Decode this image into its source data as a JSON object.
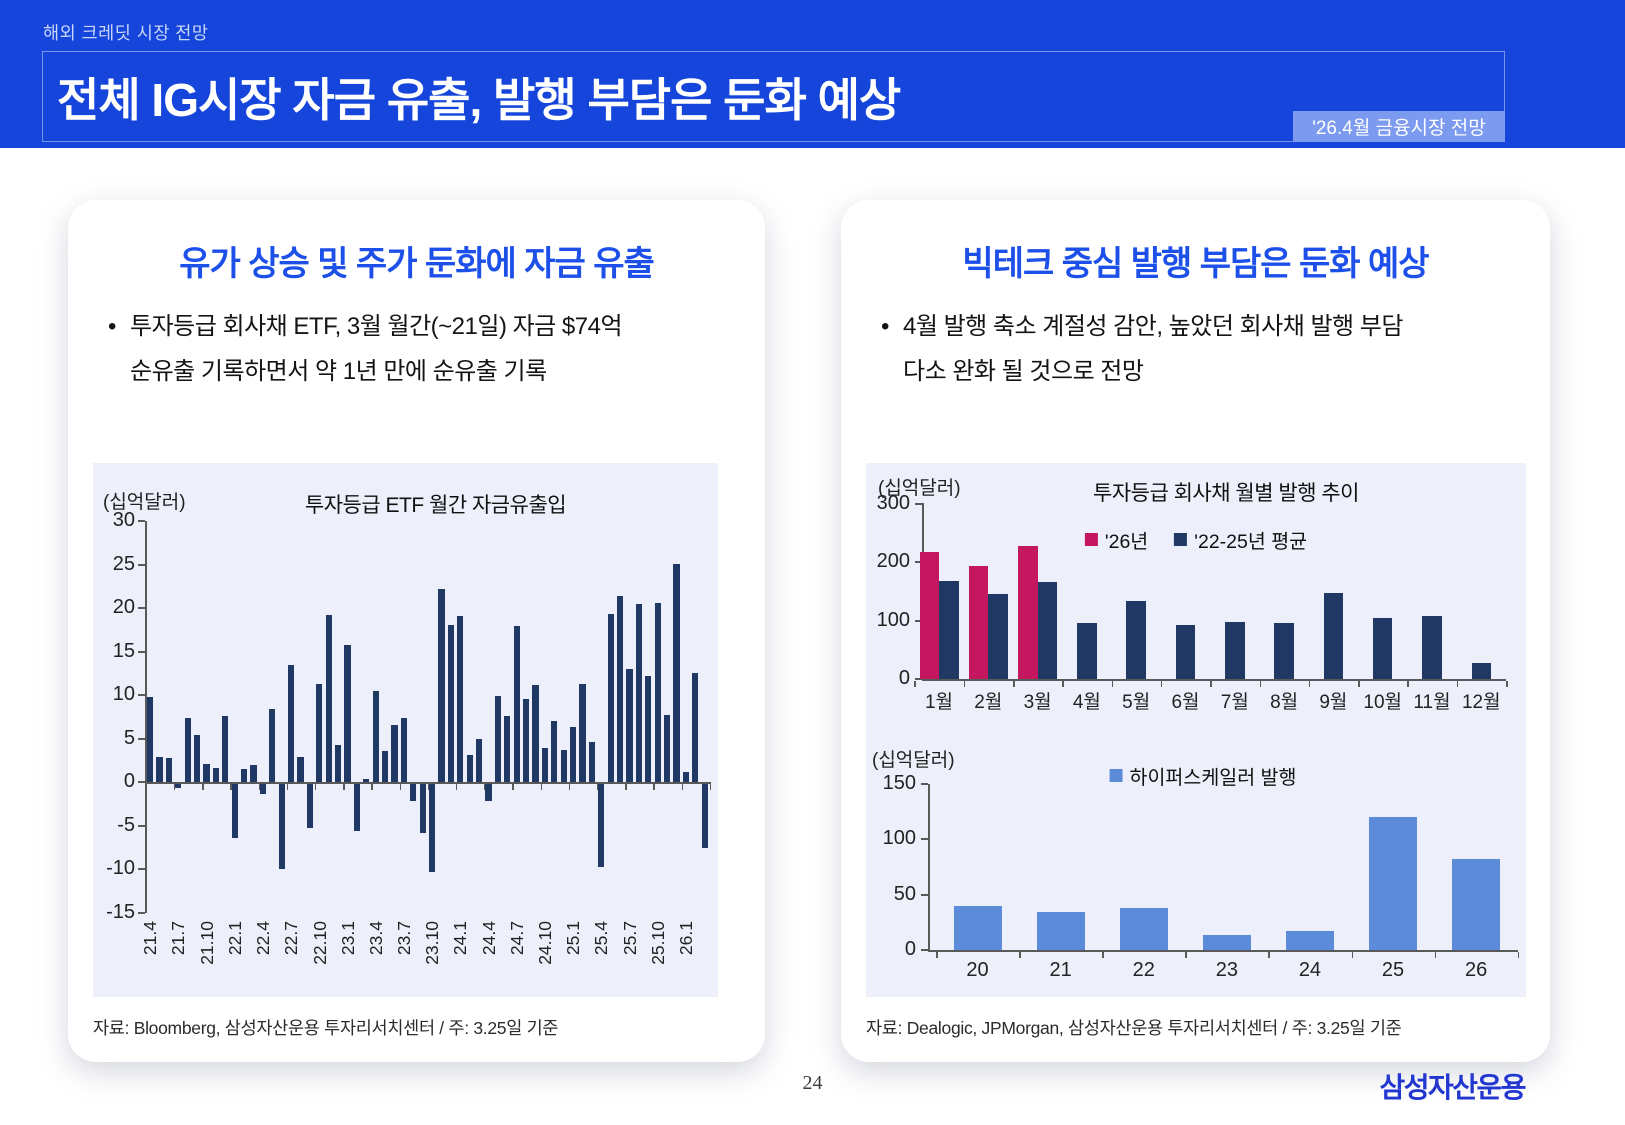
{
  "header": {
    "eyebrow": "해외 크레딧 시장 전망",
    "title": "전체 IG시장 자금 유출, 발행 부담은 둔화 예상",
    "badge": "'26.4월 금융시장 전망"
  },
  "left_card": {
    "title": "유가 상승 및 주가 둔화에 자금 유출",
    "bullet": {
      "line1": "투자등급 회사채 ETF, 3월 월간(~21일) 자금 $74억",
      "line2": "순유출 기록하면서 약 1년 만에 순유출 기록"
    },
    "source": "자료: Bloomberg, 삼성자산운용 투자리서치센터 / 주: 3.25일 기준"
  },
  "right_card": {
    "title": "빅테크 중심 발행 부담은 둔화 예상",
    "bullet": {
      "line1": "4월 발행 축소 계절성 감안, 높았던 회사채 발행 부담",
      "line2": "다소 완화 될 것으로 전망"
    },
    "source": "자료: Dealogic, JPMorgan, 삼성자산운용 투자리서치센터 / 주: 3.25일 기준"
  },
  "footer": {
    "page_number": "24",
    "logo": "삼성자산운용"
  },
  "colors": {
    "banner_blue": "#1545DA",
    "badge_blue": "#7C9AEF",
    "title_blue": "#1C50E9",
    "navy_bar": "#1F3864",
    "magenta_bar": "#C4175F",
    "light_blue_bar": "#5B8BD9",
    "chart_bg": "#EDF0FA",
    "axis": "#595959"
  },
  "chart_data": [
    {
      "type": "bar",
      "title": "투자등급 ETF 월간 자금유출입",
      "unit_label": "(십억달러)",
      "ylim": [
        -15,
        30
      ],
      "yticks": [
        30,
        25,
        20,
        15,
        10,
        5,
        0,
        -5,
        -10,
        -15
      ],
      "bar_color": "#1F3864",
      "grid": false,
      "x_tick_every": 3,
      "x_tick_labels": [
        "21.4",
        "21.7",
        "21.10",
        "22.1",
        "22.4",
        "22.7",
        "22.10",
        "23.1",
        "23.4",
        "23.7",
        "23.10",
        "24.1",
        "24.4",
        "24.7",
        "24.10",
        "25.1",
        "25.4",
        "25.7",
        "25.10",
        "26.1"
      ],
      "months": [
        "21.4",
        "21.5",
        "21.6",
        "21.7",
        "21.8",
        "21.9",
        "21.10",
        "21.11",
        "21.12",
        "22.1",
        "22.2",
        "22.3",
        "22.4",
        "22.5",
        "22.6",
        "22.7",
        "22.8",
        "22.9",
        "22.10",
        "22.11",
        "22.12",
        "23.1",
        "23.2",
        "23.3",
        "23.4",
        "23.5",
        "23.6",
        "23.7",
        "23.8",
        "23.9",
        "23.10",
        "23.11",
        "23.12",
        "24.1",
        "24.2",
        "24.3",
        "24.4",
        "24.5",
        "24.6",
        "24.7",
        "24.8",
        "24.9",
        "24.10",
        "24.11",
        "24.12",
        "25.1",
        "25.2",
        "25.3",
        "25.4",
        "25.5",
        "25.6",
        "25.7",
        "25.8",
        "25.9",
        "25.10",
        "25.11",
        "25.12",
        "26.1",
        "26.2",
        "26.3"
      ],
      "values": [
        9.8,
        2.9,
        2.8,
        -0.5,
        7.4,
        5.4,
        2.1,
        1.6,
        7.6,
        -6.2,
        1.5,
        1.9,
        -1.2,
        8.4,
        -9.8,
        13.5,
        2.9,
        -5.0,
        11.3,
        19.2,
        4.2,
        15.7,
        -5.4,
        0.4,
        10.5,
        3.6,
        6.5,
        7.4,
        -1.9,
        -5.6,
        -10.1,
        22.2,
        18.0,
        19.1,
        3.1,
        4.9,
        -1.9,
        9.9,
        7.6,
        17.9,
        9.5,
        11.2,
        3.9,
        7.0,
        3.7,
        6.3,
        11.3,
        4.6,
        -9.5,
        19.3,
        21.4,
        13.0,
        20.5,
        12.2,
        20.6,
        7.7,
        25.1,
        1.2,
        12.5,
        -7.4
      ]
    },
    {
      "type": "grouped-bar",
      "title": "투자등급 회사채 월별 발행 추이",
      "unit_label": "(십억달러)",
      "ylim": [
        0,
        300
      ],
      "yticks": [
        300,
        200,
        100,
        0
      ],
      "grid": false,
      "legend_position": "top-center",
      "categories": [
        "1월",
        "2월",
        "3월",
        "4월",
        "5월",
        "6월",
        "7월",
        "8월",
        "9월",
        "10월",
        "11월",
        "12월"
      ],
      "series": [
        {
          "name": "'26년",
          "color": "#C4175F",
          "values": [
            217,
            193,
            228,
            null,
            null,
            null,
            null,
            null,
            null,
            null,
            null,
            null
          ]
        },
        {
          "name": "'22-25년 평균",
          "color": "#1F3864",
          "values": [
            167,
            146,
            166,
            95,
            133,
            93,
            97,
            95,
            147,
            105,
            108,
            27
          ]
        }
      ]
    },
    {
      "type": "bar",
      "title": "",
      "legend": "하이퍼스케일러 발행",
      "unit_label": "(십억달러)",
      "ylim": [
        0,
        150
      ],
      "yticks": [
        150,
        100,
        50,
        0
      ],
      "bar_color": "#5B8BD9",
      "grid": false,
      "legend_position": "top-center",
      "categories": [
        "20",
        "21",
        "22",
        "23",
        "24",
        "25",
        "26"
      ],
      "values": [
        40,
        34,
        38,
        14,
        17,
        120,
        82
      ]
    }
  ]
}
